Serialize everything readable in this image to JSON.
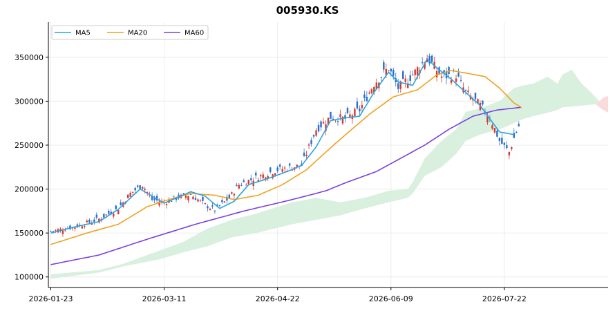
{
  "chart_data": {
    "type": "candlestick",
    "title": "005930.KS",
    "xlabel": "",
    "ylabel": "",
    "x_tick_labels": [
      "2026-01-23",
      "2026-03-11",
      "2026-04-22",
      "2026-06-09",
      "2026-07-22"
    ],
    "x_tick_index": [
      0,
      47,
      94,
      141,
      188
    ],
    "y_ticks": [
      100000,
      150000,
      200000,
      250000,
      300000,
      350000
    ],
    "y_tick_labels": [
      "100000",
      "150000",
      "200000",
      "250000",
      "300000",
      "350000"
    ],
    "ylim": [
      88000,
      390000
    ],
    "xlim_index": [
      -1,
      231
    ],
    "legend": {
      "position": "top-left",
      "entries": [
        {
          "name": "MA5",
          "color": "#29a3e0"
        },
        {
          "name": "MA20",
          "color": "#f0a11e"
        },
        {
          "name": "MA60",
          "color": "#7b3fe0"
        }
      ]
    },
    "colors": {
      "up": "#d63a2f",
      "down": "#2a6fcc",
      "cloud_bull": "#d9f0df",
      "cloud_bear": "#fadadb",
      "grid": "#ececec"
    },
    "grid": true,
    "close_anchors": [
      [
        0,
        152000
      ],
      [
        10,
        157000
      ],
      [
        20,
        166000
      ],
      [
        28,
        178000
      ],
      [
        33,
        195000
      ],
      [
        38,
        205000
      ],
      [
        42,
        188000
      ],
      [
        47,
        185000
      ],
      [
        52,
        190000
      ],
      [
        58,
        194000
      ],
      [
        64,
        182000
      ],
      [
        68,
        176000
      ],
      [
        74,
        190000
      ],
      [
        78,
        205000
      ],
      [
        85,
        213000
      ],
      [
        94,
        222000
      ],
      [
        104,
        227000
      ],
      [
        110,
        268000
      ],
      [
        116,
        282000
      ],
      [
        122,
        280000
      ],
      [
        128,
        290000
      ],
      [
        134,
        320000
      ],
      [
        140,
        338000
      ],
      [
        144,
        315000
      ],
      [
        150,
        330000
      ],
      [
        156,
        350000
      ],
      [
        162,
        328000
      ],
      [
        168,
        330000
      ],
      [
        172,
        310000
      ],
      [
        178,
        295000
      ],
      [
        182,
        282000
      ],
      [
        186,
        255000
      ],
      [
        190,
        242000
      ],
      [
        192,
        258000
      ],
      [
        194,
        272000
      ]
    ],
    "ma5_anchors": [
      [
        0,
        150000
      ],
      [
        10,
        157000
      ],
      [
        20,
        163000
      ],
      [
        28,
        177000
      ],
      [
        37,
        200000
      ],
      [
        42,
        192000
      ],
      [
        47,
        184000
      ],
      [
        53,
        191000
      ],
      [
        58,
        197000
      ],
      [
        64,
        192000
      ],
      [
        70,
        178000
      ],
      [
        76,
        186000
      ],
      [
        82,
        205000
      ],
      [
        90,
        212000
      ],
      [
        98,
        220000
      ],
      [
        104,
        227000
      ],
      [
        110,
        248000
      ],
      [
        116,
        278000
      ],
      [
        122,
        281000
      ],
      [
        128,
        283000
      ],
      [
        134,
        310000
      ],
      [
        140,
        333000
      ],
      [
        144,
        322000
      ],
      [
        150,
        318000
      ],
      [
        156,
        348000
      ],
      [
        160,
        338000
      ],
      [
        166,
        325000
      ],
      [
        172,
        310000
      ],
      [
        178,
        295000
      ],
      [
        186,
        265000
      ],
      [
        192,
        262000
      ]
    ],
    "ma20_anchors": [
      [
        0,
        137000
      ],
      [
        15,
        150000
      ],
      [
        28,
        160000
      ],
      [
        40,
        180000
      ],
      [
        50,
        189000
      ],
      [
        58,
        195000
      ],
      [
        68,
        193000
      ],
      [
        76,
        188000
      ],
      [
        86,
        193000
      ],
      [
        96,
        205000
      ],
      [
        106,
        222000
      ],
      [
        118,
        252000
      ],
      [
        132,
        285000
      ],
      [
        142,
        305000
      ],
      [
        152,
        313000
      ],
      [
        160,
        330000
      ],
      [
        166,
        335000
      ],
      [
        172,
        332000
      ],
      [
        180,
        328000
      ],
      [
        186,
        315000
      ],
      [
        192,
        298000
      ],
      [
        195,
        293000
      ]
    ],
    "ma60_anchors": [
      [
        0,
        114000
      ],
      [
        20,
        125000
      ],
      [
        40,
        143000
      ],
      [
        60,
        160000
      ],
      [
        80,
        175000
      ],
      [
        100,
        188000
      ],
      [
        114,
        198000
      ],
      [
        122,
        207000
      ],
      [
        135,
        220000
      ],
      [
        145,
        235000
      ],
      [
        155,
        250000
      ],
      [
        165,
        268000
      ],
      [
        175,
        283000
      ],
      [
        185,
        290000
      ],
      [
        195,
        293000
      ]
    ],
    "cloud_bull_upper": [
      [
        0,
        103000
      ],
      [
        20,
        108000
      ],
      [
        30,
        115000
      ],
      [
        45,
        130000
      ],
      [
        55,
        140000
      ],
      [
        65,
        155000
      ],
      [
        75,
        165000
      ],
      [
        85,
        172000
      ],
      [
        100,
        185000
      ],
      [
        110,
        190000
      ],
      [
        120,
        185000
      ],
      [
        130,
        190000
      ],
      [
        140,
        198000
      ],
      [
        148,
        200000
      ],
      [
        150,
        208000
      ],
      [
        155,
        235000
      ],
      [
        162,
        255000
      ],
      [
        168,
        268000
      ],
      [
        172,
        288000
      ],
      [
        178,
        292000
      ],
      [
        186,
        300000
      ],
      [
        192,
        315000
      ],
      [
        196,
        318000
      ],
      [
        200,
        320000
      ],
      [
        206,
        328000
      ],
      [
        210,
        320000
      ],
      [
        212,
        330000
      ],
      [
        216,
        336000
      ],
      [
        220,
        320000
      ],
      [
        224,
        310000
      ],
      [
        228,
        298000
      ],
      [
        231,
        296000
      ]
    ],
    "cloud_bull_lower": [
      [
        0,
        98000
      ],
      [
        20,
        105000
      ],
      [
        30,
        112000
      ],
      [
        45,
        120000
      ],
      [
        55,
        128000
      ],
      [
        65,
        135000
      ],
      [
        75,
        145000
      ],
      [
        85,
        150000
      ],
      [
        100,
        160000
      ],
      [
        110,
        165000
      ],
      [
        120,
        170000
      ],
      [
        130,
        178000
      ],
      [
        140,
        185000
      ],
      [
        148,
        190000
      ],
      [
        150,
        195000
      ],
      [
        155,
        215000
      ],
      [
        162,
        225000
      ],
      [
        168,
        240000
      ],
      [
        172,
        255000
      ],
      [
        178,
        262000
      ],
      [
        186,
        268000
      ],
      [
        192,
        275000
      ],
      [
        196,
        280000
      ],
      [
        200,
        283000
      ],
      [
        206,
        287000
      ],
      [
        210,
        290000
      ],
      [
        212,
        293000
      ],
      [
        216,
        294000
      ],
      [
        220,
        295000
      ],
      [
        224,
        296000
      ],
      [
        228,
        297000
      ],
      [
        231,
        296000
      ]
    ],
    "cloud_bear_upper": [
      [
        226,
        296000
      ],
      [
        229,
        304000
      ],
      [
        231,
        306000
      ]
    ],
    "cloud_bear_lower": [
      [
        226,
        296000
      ],
      [
        229,
        290000
      ],
      [
        231,
        287000
      ]
    ]
  }
}
